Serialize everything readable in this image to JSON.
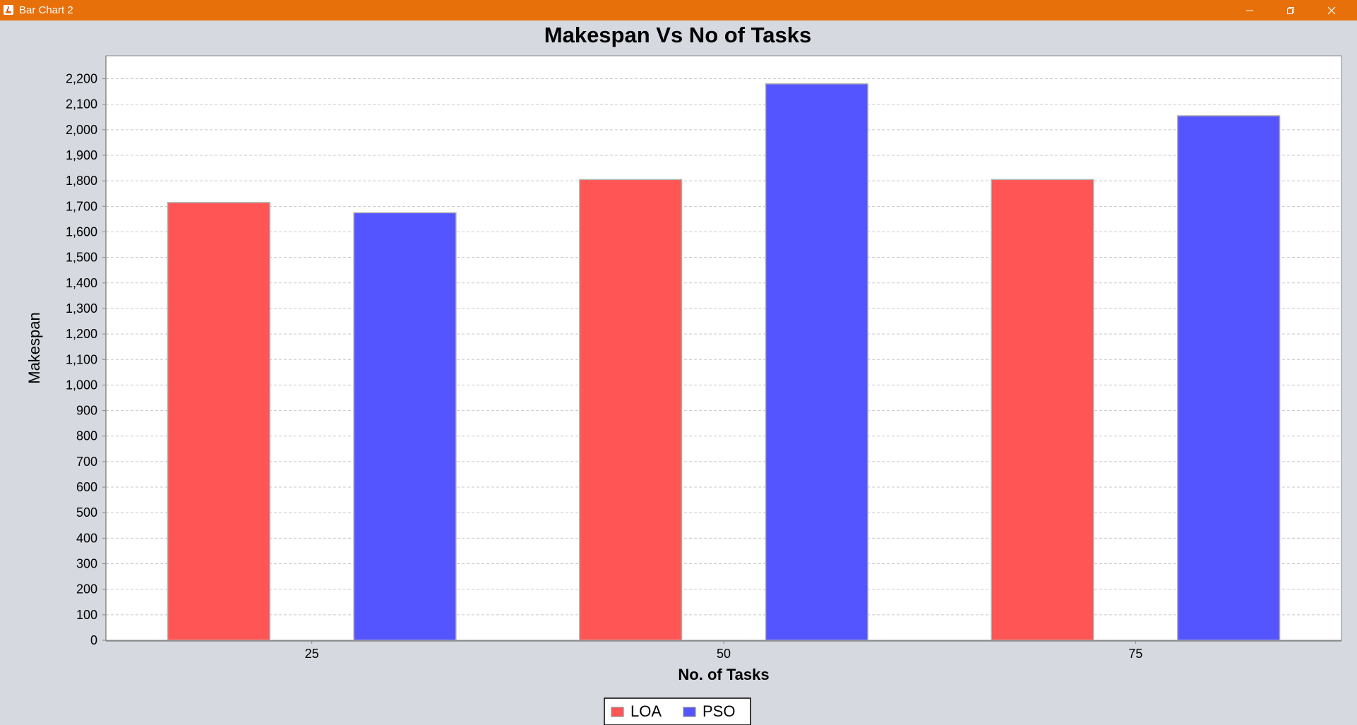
{
  "window": {
    "title": "Bar Chart 2",
    "icons": {
      "app": "java-icon",
      "minimize": "minimize-icon",
      "maximize": "restore-icon",
      "close": "close-icon"
    }
  },
  "colors": {
    "titlebar": "#e8700a",
    "background": "#d6d9e0",
    "plot_background": "#ffffff",
    "gridline": "#c8c8c8"
  },
  "chart_data": {
    "type": "bar",
    "title": "Makespan Vs No of Tasks",
    "xlabel": "No. of Tasks",
    "ylabel": "Makespan",
    "categories": [
      "25",
      "50",
      "75"
    ],
    "series": [
      {
        "name": "LOA",
        "color": "#ff5555",
        "values": [
          1715,
          1805,
          1805
        ]
      },
      {
        "name": "PSO",
        "color": "#5555ff",
        "values": [
          1675,
          2180,
          2055
        ]
      }
    ],
    "ylim": [
      0,
      2290
    ],
    "yticks": [
      0,
      100,
      200,
      300,
      400,
      500,
      600,
      700,
      800,
      900,
      1000,
      1100,
      1200,
      1300,
      1400,
      1500,
      1600,
      1700,
      1800,
      1900,
      2000,
      2100,
      2200
    ],
    "grid": true,
    "legend_position": "bottom"
  }
}
